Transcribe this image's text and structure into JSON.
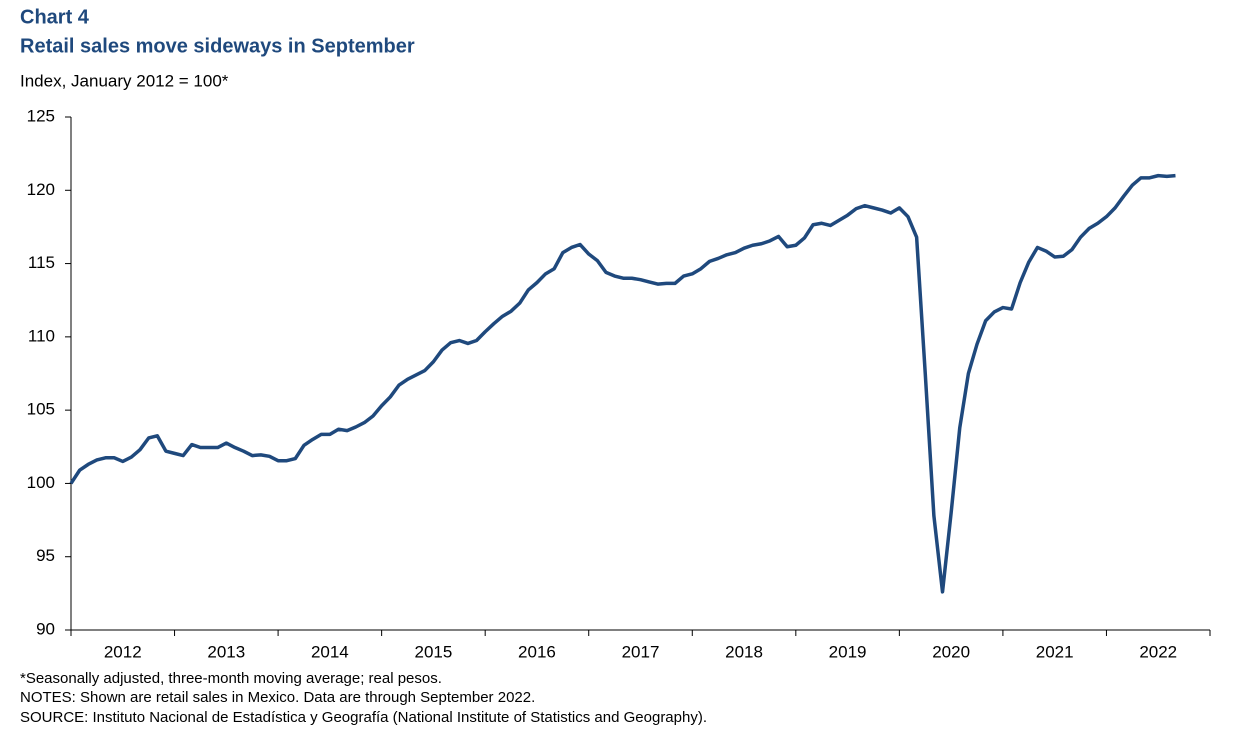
{
  "chart_data": {
    "type": "line",
    "chart_label": "Chart 4",
    "title": "Retail sales move sideways in September",
    "subtitle": "Index, January 2012 = 100*",
    "notes": [
      "*Seasonally adjusted, three-month moving average; real pesos.",
      "NOTES: Shown are retail sales in Mexico. Data are through September 2022.",
      "SOURCE: Instituto Nacional de Estadística y Geografía (National Institute of Statistics and Geography)."
    ],
    "color": "#1f497d",
    "ylim": [
      90,
      125
    ],
    "yticks": [
      90,
      95,
      100,
      105,
      110,
      115,
      120,
      125
    ],
    "categories": [
      null,
      null,
      null,
      null,
      null,
      null,
      "2012",
      null,
      null,
      null,
      null,
      null,
      null,
      null,
      null,
      null,
      null,
      null,
      "2013",
      null,
      null,
      null,
      null,
      null,
      null,
      null,
      null,
      null,
      null,
      null,
      "2014",
      null,
      null,
      null,
      null,
      null,
      null,
      null,
      null,
      null,
      null,
      null,
      "2015",
      null,
      null,
      null,
      null,
      null,
      null,
      null,
      null,
      null,
      null,
      null,
      "2016",
      null,
      null,
      null,
      null,
      null,
      null,
      null,
      null,
      null,
      null,
      null,
      "2017",
      null,
      null,
      null,
      null,
      null,
      null,
      null,
      null,
      null,
      null,
      null,
      "2018",
      null,
      null,
      null,
      null,
      null,
      null,
      null,
      null,
      null,
      null,
      null,
      "2019",
      null,
      null,
      null,
      null,
      null,
      null,
      null,
      null,
      null,
      null,
      null,
      "2020",
      null,
      null,
      null,
      null,
      null,
      null,
      null,
      null,
      null,
      null,
      null,
      "2021",
      null,
      null,
      null,
      null,
      null,
      null,
      null,
      null,
      null,
      null,
      null,
      "2022",
      null,
      null
    ],
    "values": [
      100,
      100.9,
      101.3,
      101.6,
      101.75,
      101.75,
      101.5,
      101.8,
      102.3,
      103.1,
      103.25,
      102.2,
      102.05,
      101.9,
      102.65,
      102.45,
      102.45,
      102.45,
      102.75,
      102.45,
      102.2,
      101.9,
      101.95,
      101.85,
      101.55,
      101.55,
      101.7,
      102.6,
      103.0,
      103.35,
      103.35,
      103.7,
      103.6,
      103.85,
      104.15,
      104.6,
      105.3,
      105.9,
      106.7,
      107.1,
      107.4,
      107.7,
      108.3,
      109.1,
      109.6,
      109.75,
      109.55,
      109.75,
      110.35,
      110.9,
      111.4,
      111.75,
      112.3,
      113.2,
      113.7,
      114.3,
      114.65,
      115.75,
      116.1,
      116.3,
      115.65,
      115.2,
      114.4,
      114.15,
      114.0,
      114.0,
      113.9,
      113.75,
      113.6,
      113.65,
      113.65,
      114.15,
      114.3,
      114.65,
      115.15,
      115.35,
      115.6,
      115.75,
      116.05,
      116.25,
      116.35,
      116.55,
      116.85,
      116.15,
      116.25,
      116.75,
      117.65,
      117.75,
      117.6,
      117.95,
      118.3,
      118.75,
      118.95,
      118.8,
      118.65,
      118.45,
      118.8,
      118.2,
      116.8,
      107.5,
      97.8,
      92.6,
      98.0,
      103.8,
      107.5,
      109.5,
      111.1,
      111.7,
      112.0,
      111.9,
      113.7,
      115.1,
      116.1,
      115.85,
      115.45,
      115.5,
      115.95,
      116.8,
      117.4,
      117.75,
      118.2,
      118.8,
      119.6,
      120.35,
      120.85,
      120.85,
      121.0,
      120.95,
      121.0
    ]
  }
}
